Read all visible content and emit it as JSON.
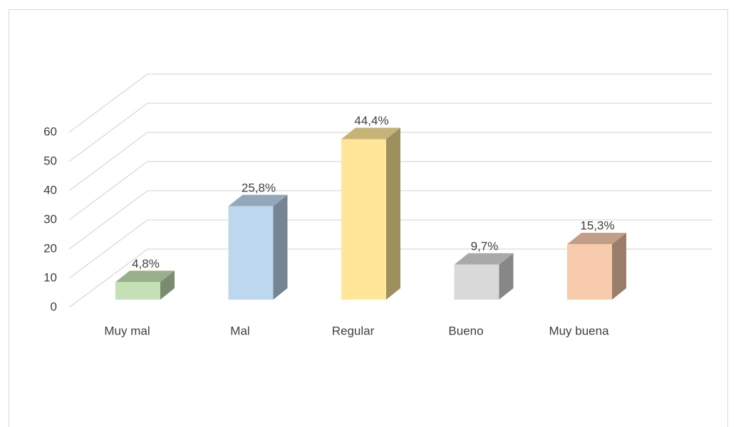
{
  "chart_data": {
    "type": "bar3d",
    "categories": [
      "Muy mal",
      "Mal",
      "Regular",
      "Bueno",
      "Muy buena"
    ],
    "values": [
      6,
      32,
      55,
      12,
      19
    ],
    "data_labels": [
      "4,8%",
      "25,8%",
      "44,4%",
      "9,7%",
      "15,3%"
    ],
    "colors": [
      "#c5e0b4",
      "#bdd7ee",
      "#ffe699",
      "#d9d9d9",
      "#f8cbad"
    ],
    "ylim": [
      0,
      60
    ],
    "yticks": [
      0,
      10,
      20,
      30,
      40,
      50,
      60
    ],
    "grid": true
  }
}
